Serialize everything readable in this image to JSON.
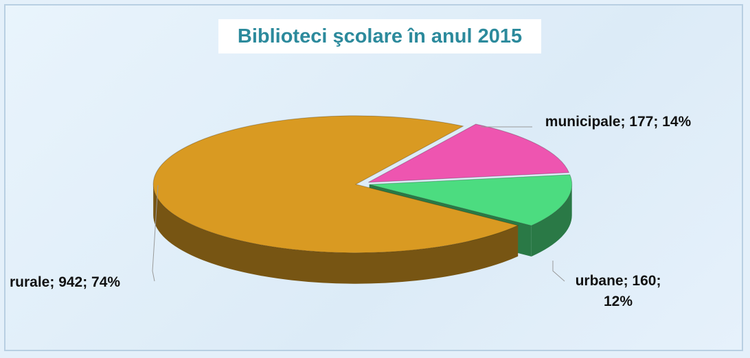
{
  "chart_data": {
    "type": "pie",
    "title": "Biblioteci şcolare în anul 2015",
    "categories": [
      "municipale",
      "urbane",
      "rurale"
    ],
    "values": [
      177,
      160,
      942
    ],
    "value_labels": [
      "municipale; 177; 14%",
      "urbane; 160; 12%",
      "rurale; 942; 74%"
    ],
    "colors": [
      "#ee55b0",
      "#4cdc80",
      "#d99a22"
    ]
  }
}
